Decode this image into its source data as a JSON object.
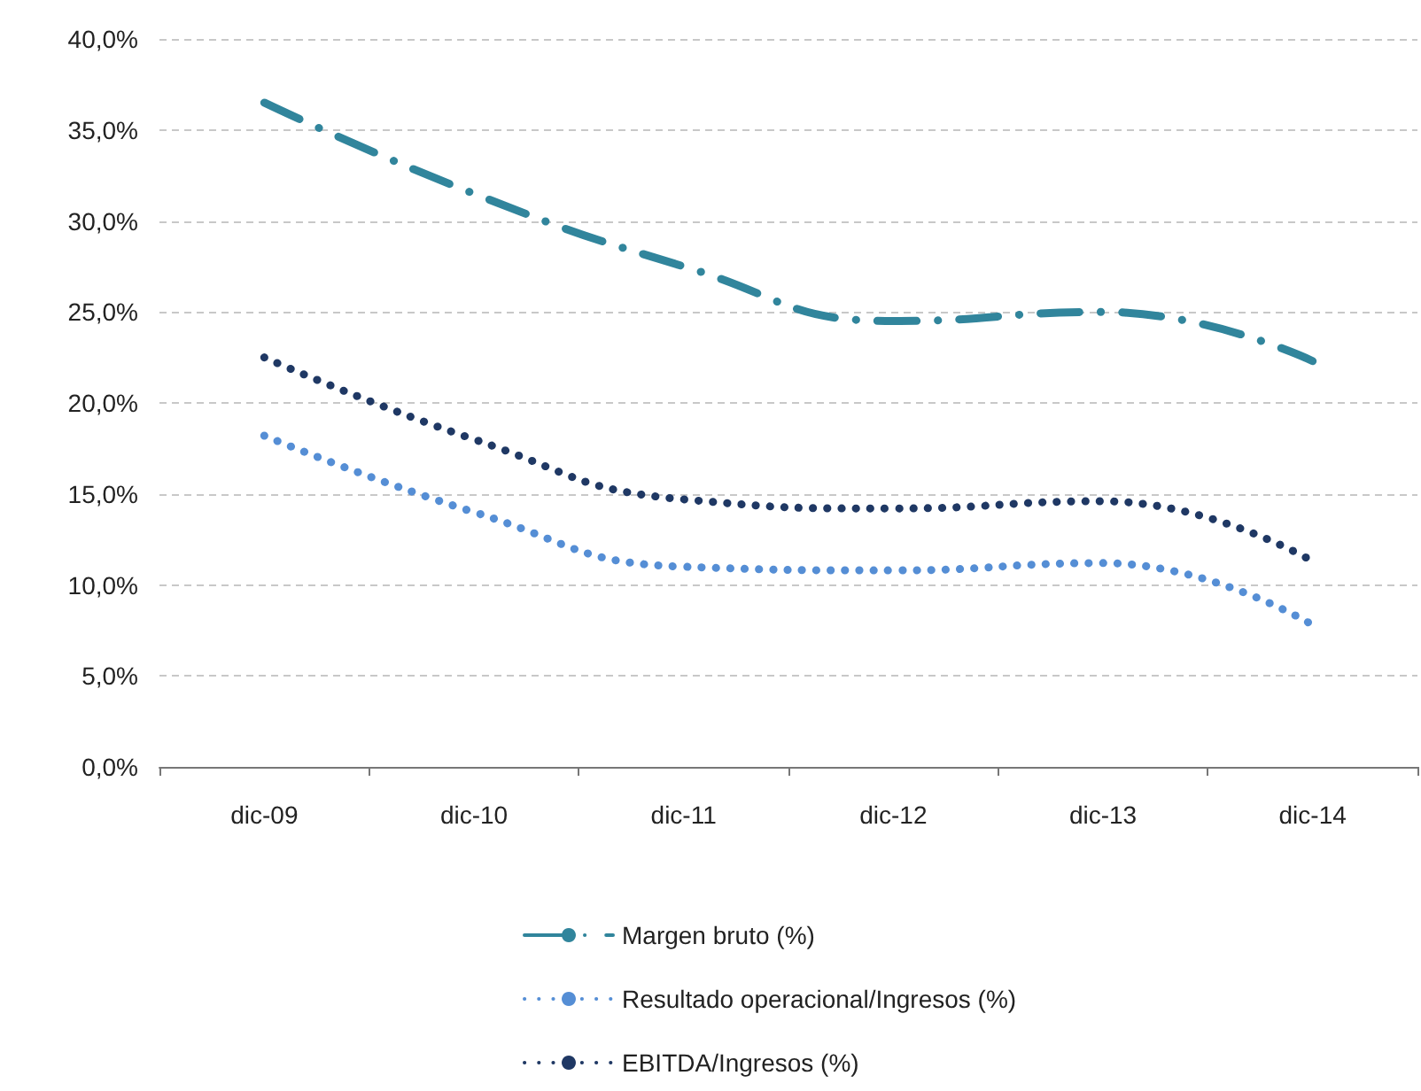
{
  "chart_data": {
    "type": "line",
    "categories": [
      "dic-09",
      "dic-10",
      "dic-11",
      "dic-12",
      "dic-13",
      "dic-14"
    ],
    "series": [
      {
        "name": "Margen bruto (%)",
        "color": "#31859c",
        "line_style": "dashdot",
        "values": [
          36.5,
          31.5,
          27.5,
          24.5,
          25.0,
          22.3
        ]
      },
      {
        "name": "Resultado operacional/Ingresos (%)",
        "color": "#558ed5",
        "line_style": "dotted",
        "values": [
          18.2,
          14.0,
          11.0,
          10.8,
          11.2,
          7.8
        ]
      },
      {
        "name": "EBITDA/Ingresos (%)",
        "color": "#1f3864",
        "line_style": "dotted",
        "values": [
          22.5,
          18.0,
          14.7,
          14.2,
          14.6,
          11.3
        ]
      }
    ],
    "ylim": [
      0,
      40
    ],
    "yticks": [
      {
        "value": 0,
        "label": "0,0%"
      },
      {
        "value": 5,
        "label": "5,0%"
      },
      {
        "value": 10,
        "label": "10,0%"
      },
      {
        "value": 15,
        "label": "15,0%"
      },
      {
        "value": 20,
        "label": "20,0%"
      },
      {
        "value": 25,
        "label": "25,0%"
      },
      {
        "value": 30,
        "label": "30,0%"
      },
      {
        "value": 35,
        "label": "35,0%"
      },
      {
        "value": 40,
        "label": "40,0%"
      }
    ],
    "grid": "y",
    "legend": "bottom",
    "marker": "none"
  }
}
